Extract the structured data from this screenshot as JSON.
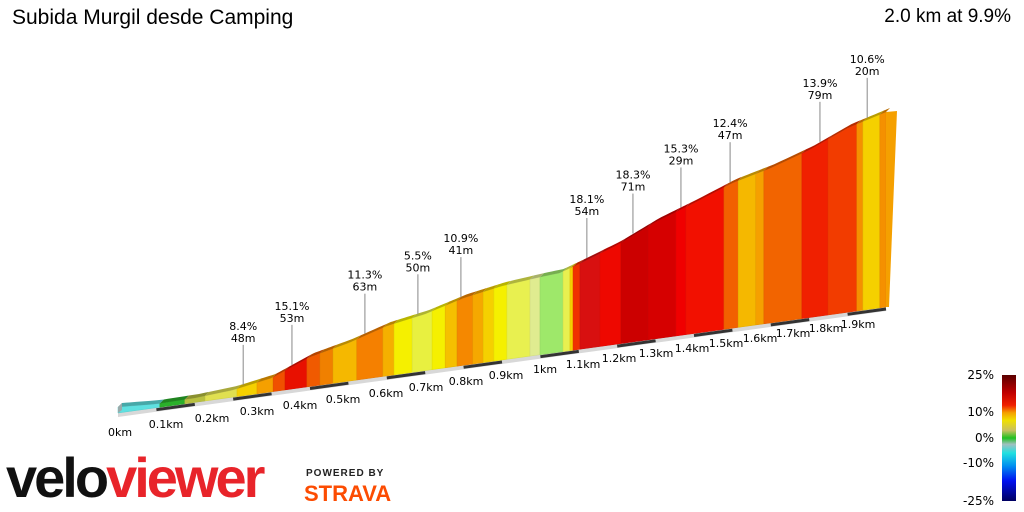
{
  "header": {
    "title": "Subida Murgil desde Camping",
    "summary": "2.0 km at 9.9%"
  },
  "chart_data": {
    "type": "area",
    "title": "Subida Murgil desde Camping",
    "distance_km": 2.0,
    "avg_gradient_pct": 9.9,
    "x_ticks": [
      "0km",
      "0.1km",
      "0.2km",
      "0.3km",
      "0.4km",
      "0.5km",
      "0.6km",
      "0.7km",
      "0.8km",
      "0.9km",
      "1km",
      "1.1km",
      "1.2km",
      "1.3km",
      "1.4km",
      "1.5km",
      "1.6km",
      "1.7km",
      "1.8km",
      "1.9km"
    ],
    "annotations": [
      {
        "km": 0.326,
        "gradient": "8.4%",
        "length": "48m"
      },
      {
        "km": 0.453,
        "gradient": "15.1%",
        "length": "53m"
      },
      {
        "km": 0.643,
        "gradient": "11.3%",
        "length": "63m"
      },
      {
        "km": 0.781,
        "gradient": "5.5%",
        "length": "50m"
      },
      {
        "km": 0.893,
        "gradient": "10.9%",
        "length": "41m"
      },
      {
        "km": 1.221,
        "gradient": "18.1%",
        "length": "54m"
      },
      {
        "km": 1.341,
        "gradient": "18.3%",
        "length": "71m"
      },
      {
        "km": 1.466,
        "gradient": "15.3%",
        "length": "29m"
      },
      {
        "km": 1.594,
        "gradient": "12.4%",
        "length": "47m"
      },
      {
        "km": 1.828,
        "gradient": "13.9%",
        "length": "79m"
      },
      {
        "km": 1.951,
        "gradient": "10.6%",
        "length": "20m"
      }
    ],
    "segments": [
      {
        "from_km": 0,
        "color": "#5ee0e0"
      },
      {
        "from_km": 0.109,
        "color": "#2ab02a"
      },
      {
        "from_km": 0.174,
        "color": "#b8c040"
      },
      {
        "from_km": 0.227,
        "color": "#e0e050"
      },
      {
        "from_km": 0.31,
        "color": "#f5d000"
      },
      {
        "from_km": 0.362,
        "color": "#f5a000"
      },
      {
        "from_km": 0.404,
        "color": "#f05000"
      },
      {
        "from_km": 0.435,
        "color": "#e81000"
      },
      {
        "from_km": 0.492,
        "color": "#f05a00"
      },
      {
        "from_km": 0.526,
        "color": "#f08000"
      },
      {
        "from_km": 0.56,
        "color": "#f5b800"
      },
      {
        "from_km": 0.622,
        "color": "#f58000"
      },
      {
        "from_km": 0.69,
        "color": "#f5b000"
      },
      {
        "from_km": 0.719,
        "color": "#f5f000"
      },
      {
        "from_km": 0.766,
        "color": "#e8f040"
      },
      {
        "from_km": 0.818,
        "color": "#f5f000"
      },
      {
        "from_km": 0.852,
        "color": "#f5c000"
      },
      {
        "from_km": 0.883,
        "color": "#f58800"
      },
      {
        "from_km": 0.924,
        "color": "#f5a800"
      },
      {
        "from_km": 0.951,
        "color": "#f5d000"
      },
      {
        "from_km": 0.979,
        "color": "#f5f000"
      },
      {
        "from_km": 1.013,
        "color": "#e8f050"
      },
      {
        "from_km": 1.073,
        "color": "#e0ec90"
      },
      {
        "from_km": 1.099,
        "color": "#9ee86a"
      },
      {
        "from_km": 1.159,
        "color": "#e8f050"
      },
      {
        "from_km": 1.177,
        "color": "#f5d000"
      },
      {
        "from_km": 1.185,
        "color": "#f03000"
      },
      {
        "from_km": 1.203,
        "color": "#d81010"
      },
      {
        "from_km": 1.255,
        "color": "#ee0800"
      },
      {
        "from_km": 1.31,
        "color": "#cc0000"
      },
      {
        "from_km": 1.38,
        "color": "#d60000"
      },
      {
        "from_km": 1.453,
        "color": "#f00000"
      },
      {
        "from_km": 1.479,
        "color": "#f21000"
      },
      {
        "from_km": 1.578,
        "color": "#f26000"
      },
      {
        "from_km": 1.615,
        "color": "#f5b800"
      },
      {
        "from_km": 1.661,
        "color": "#f5a000"
      },
      {
        "from_km": 1.682,
        "color": "#f26400"
      },
      {
        "from_km": 1.781,
        "color": "#f02000"
      },
      {
        "from_km": 1.849,
        "color": "#f23c00"
      },
      {
        "from_km": 1.924,
        "color": "#f59000"
      },
      {
        "from_km": 1.94,
        "color": "#f5d000"
      },
      {
        "from_km": 1.984,
        "color": "#f59000"
      }
    ],
    "legend": {
      "title": "",
      "labels": [
        "25%",
        "10%",
        "0%",
        "-10%",
        "-25%"
      ],
      "placement": "bottom-right"
    }
  },
  "branding": {
    "logo_velo": "velo",
    "logo_viewer": "viewer",
    "powered_by": "POWERED BY",
    "strava": "STRAVA",
    "logo_red": "#e8242a",
    "strava_orange": "#fc4c02"
  }
}
